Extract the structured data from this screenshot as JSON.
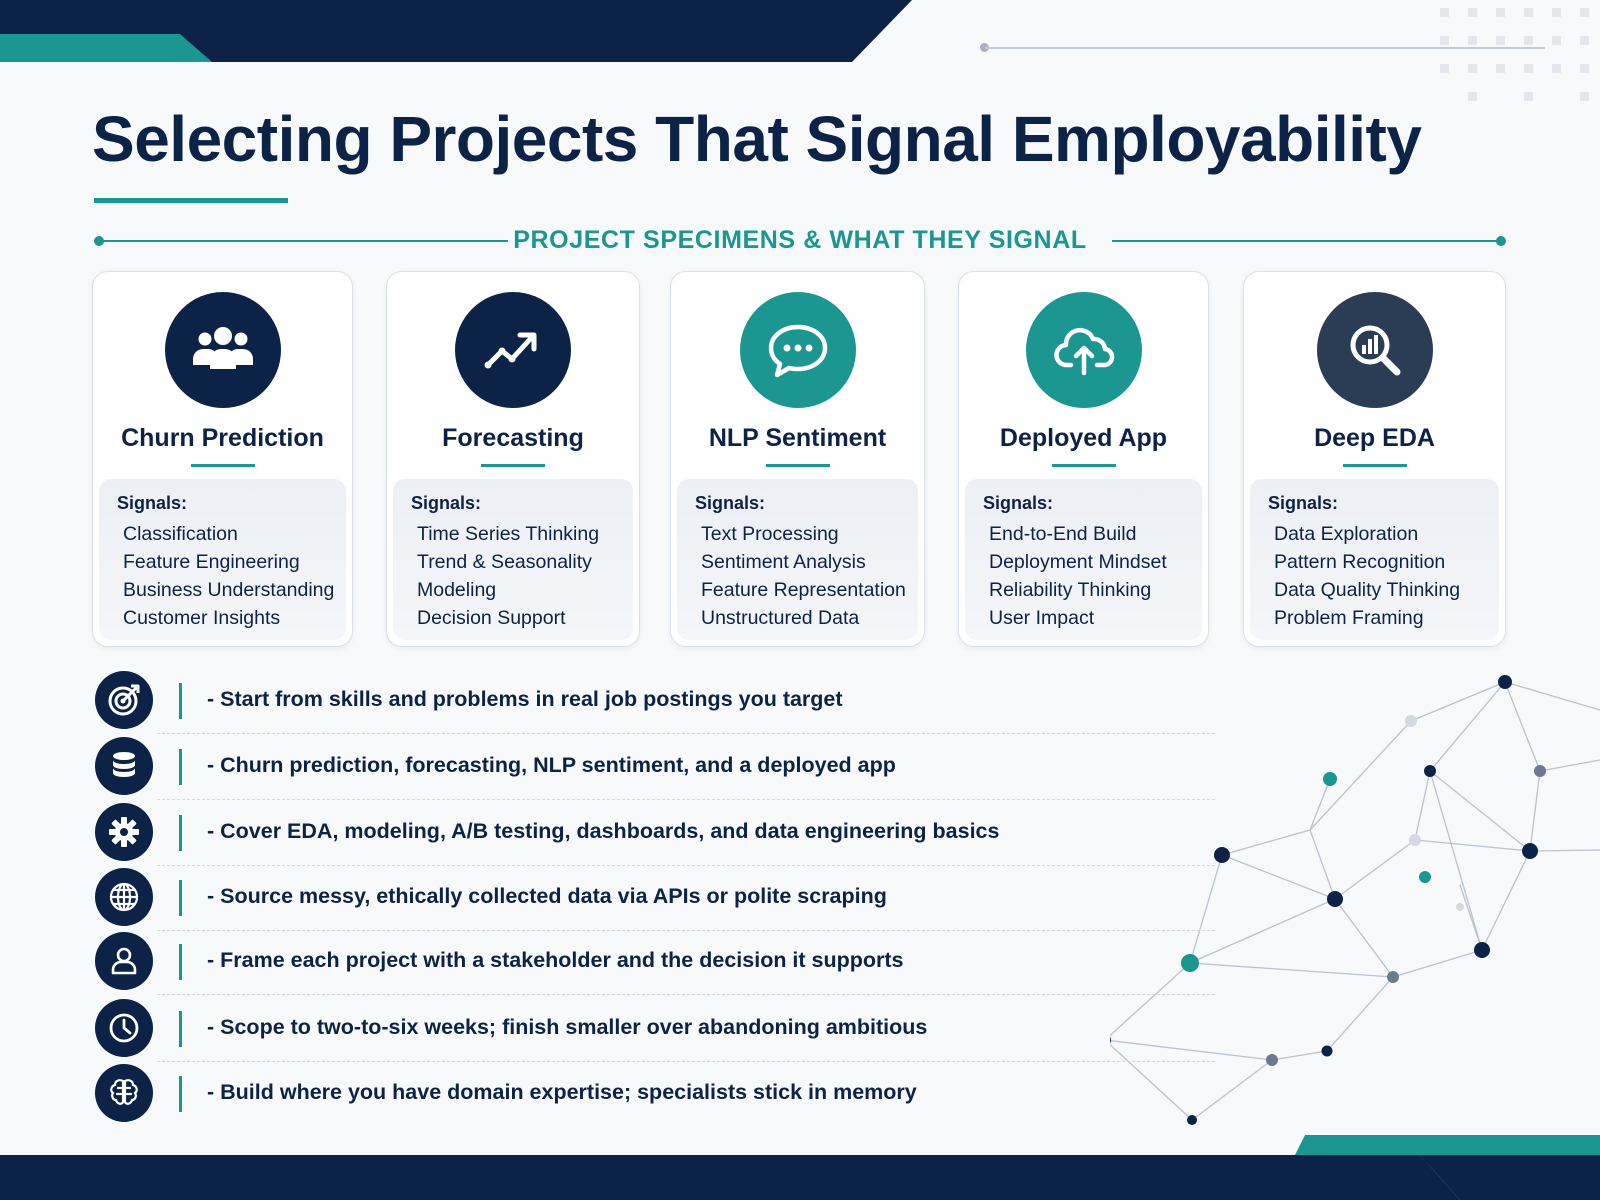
{
  "title": "Selecting Projects That Signal Employability",
  "section_label": "PROJECT SPECIMENS & WHAT THEY SIGNAL",
  "signals_label": "Signals:",
  "colors": {
    "navy": "#0c2347",
    "teal": "#1b9690",
    "slate": "#2b3c55"
  },
  "projects": [
    {
      "title": "Churn Prediction",
      "icon": "users-icon",
      "signals": [
        "Classification",
        "Feature Engineering",
        "Business Understanding",
        "Customer Insights"
      ]
    },
    {
      "title": "Forecasting",
      "icon": "trend-up-icon",
      "signals": [
        "Time Series Thinking",
        "Trend & Seasonality",
        "Modeling",
        "Decision Support"
      ]
    },
    {
      "title": "NLP Sentiment",
      "icon": "chat-bubble-icon",
      "signals": [
        "Text Processing",
        "Sentiment Analysis",
        "Feature Representation",
        "Unstructured Data"
      ]
    },
    {
      "title": "Deployed App",
      "icon": "cloud-upload-icon",
      "signals": [
        "End-to-End Build",
        "Deployment Mindset",
        "Reliability Thinking",
        "User Impact"
      ]
    },
    {
      "title": "Deep EDA",
      "icon": "magnifier-chart-icon",
      "signals": [
        "Data Exploration",
        "Pattern Recognition",
        "Data Quality Thinking",
        "Problem Framing"
      ]
    }
  ],
  "bullets": [
    {
      "icon": "target-icon",
      "text": "- Start from skills and problems in real job postings you target"
    },
    {
      "icon": "database-icon",
      "text": "- Churn prediction, forecasting, NLP sentiment, and a deployed app"
    },
    {
      "icon": "gear-icon",
      "text": "- Cover EDA, modeling, A/B testing, dashboards, and data engineering basics"
    },
    {
      "icon": "globe-icon",
      "text": "- Source messy, ethically collected data via APIs or polite scraping"
    },
    {
      "icon": "person-icon",
      "text": "- Frame each project with a stakeholder and the decision it supports"
    },
    {
      "icon": "clock-icon",
      "text": "- Scope to two-to-six weeks; finish smaller over abandoning ambitious"
    },
    {
      "icon": "brain-icon",
      "text": "- Build where you have domain expertise; specialists stick in memory"
    }
  ]
}
